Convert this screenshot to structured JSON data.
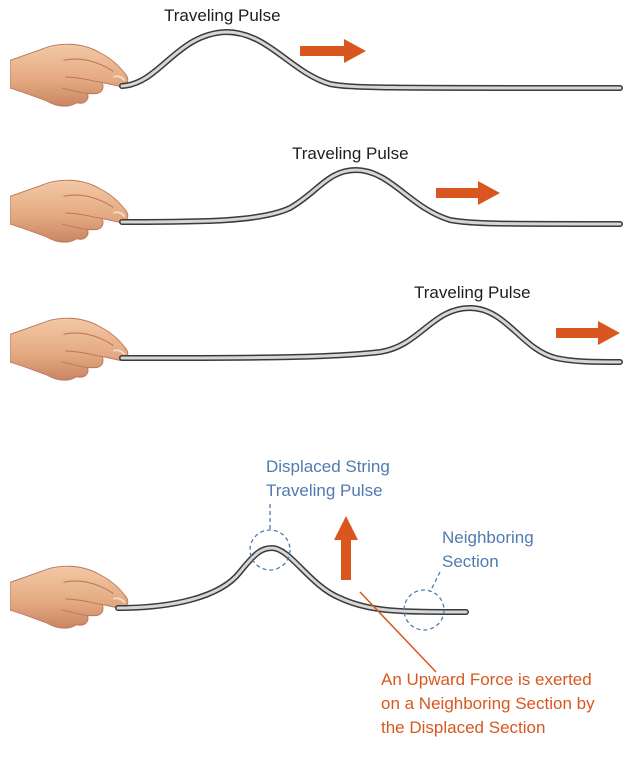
{
  "colors": {
    "arrow": "#d9571f",
    "string_fill": "#cfcfcf",
    "string_edge": "#3a3a3a",
    "skin": "#eab48f",
    "skin_shadow": "#b9785a",
    "annotation_blue": "#4f7bb0",
    "annotation_orange": "#d9571f"
  },
  "icons": {
    "hand": "hand-holding-string-icon",
    "arrow_right": "arrow-right-icon",
    "arrow_up": "arrow-up-icon"
  },
  "panels": [
    {
      "label": "Traveling Pulse"
    },
    {
      "label": "Traveling Pulse"
    },
    {
      "label": "Traveling Pulse"
    }
  ],
  "annotation": {
    "displaced_line1": "Displaced String",
    "displaced_line2": "Traveling Pulse",
    "neighbor_line1": "Neighboring",
    "neighbor_line2": "Section",
    "force_line1": "An Upward Force is exerted",
    "force_line2": "on a Neighboring Section by",
    "force_line3": "the Displaced Section"
  }
}
